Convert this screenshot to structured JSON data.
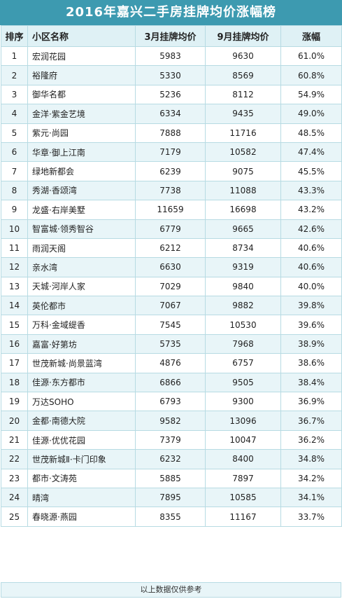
{
  "title": "2016年嘉兴二手房挂牌均价涨幅榜",
  "headers": {
    "rank": "排序",
    "name": "小区名称",
    "march": "3月挂牌均价",
    "september": "9月挂牌均价",
    "increase": "涨幅"
  },
  "rows": [
    {
      "rank": "1",
      "name": "宏润花园",
      "march": "5983",
      "september": "9630",
      "increase": "61.0%"
    },
    {
      "rank": "2",
      "name": "裕隆府",
      "march": "5330",
      "september": "8569",
      "increase": "60.8%"
    },
    {
      "rank": "3",
      "name": "御华名都",
      "march": "5236",
      "september": "8112",
      "increase": "54.9%"
    },
    {
      "rank": "4",
      "name": "金洋·紫金艺境",
      "march": "6334",
      "september": "9435",
      "increase": "49.0%"
    },
    {
      "rank": "5",
      "name": "紫元·尚园",
      "march": "7888",
      "september": "11716",
      "increase": "48.5%"
    },
    {
      "rank": "6",
      "name": "华章·御上江南",
      "march": "7179",
      "september": "10582",
      "increase": "47.4%"
    },
    {
      "rank": "7",
      "name": "绿地新都会",
      "march": "6239",
      "september": "9075",
      "increase": "45.5%"
    },
    {
      "rank": "8",
      "name": "秀湖·香颂湾",
      "march": "7738",
      "september": "11088",
      "increase": "43.3%"
    },
    {
      "rank": "9",
      "name": "龙盛·右岸美墅",
      "march": "11659",
      "september": "16698",
      "increase": "43.2%"
    },
    {
      "rank": "10",
      "name": "智富城·领秀智谷",
      "march": "6779",
      "september": "9665",
      "increase": "42.6%"
    },
    {
      "rank": "11",
      "name": "雨润天阁",
      "march": "6212",
      "september": "8734",
      "increase": "40.6%"
    },
    {
      "rank": "12",
      "name": "亲水湾",
      "march": "6630",
      "september": "9319",
      "increase": "40.6%"
    },
    {
      "rank": "13",
      "name": "天城·河岸人家",
      "march": "7029",
      "september": "9840",
      "increase": "40.0%"
    },
    {
      "rank": "14",
      "name": "英伦都市",
      "march": "7067",
      "september": "9882",
      "increase": "39.8%"
    },
    {
      "rank": "15",
      "name": "万科·金域缇香",
      "march": "7545",
      "september": "10530",
      "increase": "39.6%"
    },
    {
      "rank": "16",
      "name": "嘉富·好第坊",
      "march": "5735",
      "september": "7968",
      "increase": "38.9%"
    },
    {
      "rank": "17",
      "name": "世茂新城·尚景蓝湾",
      "march": "4876",
      "september": "6757",
      "increase": "38.6%"
    },
    {
      "rank": "18",
      "name": "佳源·东方都市",
      "march": "6866",
      "september": "9505",
      "increase": "38.4%"
    },
    {
      "rank": "19",
      "name": "万达SOHO",
      "march": "6793",
      "september": "9300",
      "increase": "36.9%"
    },
    {
      "rank": "20",
      "name": "金都·南德大院",
      "march": "9582",
      "september": "13096",
      "increase": "36.7%"
    },
    {
      "rank": "21",
      "name": "佳源·优优花园",
      "march": "7379",
      "september": "10047",
      "increase": "36.2%"
    },
    {
      "rank": "22",
      "name": "世茂新城Ⅱ·卡门印象",
      "march": "6232",
      "september": "8400",
      "increase": "34.8%"
    },
    {
      "rank": "23",
      "name": "都市·文涛苑",
      "march": "5885",
      "september": "7897",
      "increase": "34.2%"
    },
    {
      "rank": "24",
      "name": "晴湾",
      "march": "7895",
      "september": "10585",
      "increase": "34.1%"
    },
    {
      "rank": "25",
      "name": "春晓源·燕园",
      "march": "8355",
      "september": "11167",
      "increase": "33.7%"
    }
  ],
  "footer": "以上数据仅供参考",
  "colors": {
    "title_bg": "#3d9ab0",
    "header_bg": "#dff1f5",
    "row_stripe": "#e8f5f8",
    "border": "#b7dbe3"
  }
}
